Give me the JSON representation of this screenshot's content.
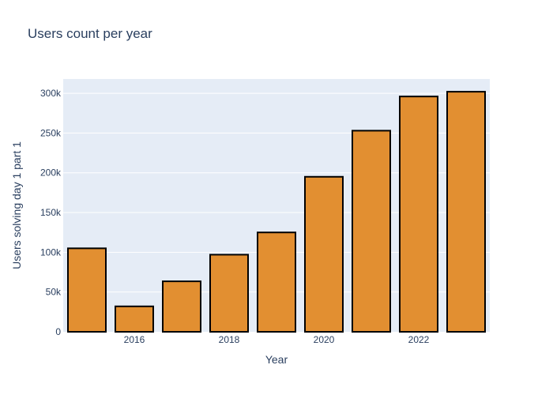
{
  "chart_data": {
    "type": "bar",
    "title": "Users count per year",
    "xlabel": "Year",
    "ylabel": "Users solving day 1 part 1",
    "categories": [
      2015,
      2016,
      2017,
      2018,
      2019,
      2020,
      2021,
      2022,
      2023
    ],
    "values": [
      105000,
      32000,
      63500,
      97000,
      125000,
      195000,
      253000,
      296000,
      302000
    ],
    "xticks": [
      2016,
      2018,
      2020,
      2022
    ],
    "ylim": [
      0,
      318000
    ],
    "yticks": [
      0,
      50000,
      100000,
      150000,
      200000,
      250000,
      300000
    ],
    "ytick_labels": [
      "0",
      "50k",
      "100k",
      "150k",
      "200k",
      "250k",
      "300k"
    ],
    "grid": true,
    "colors": {
      "bar_fill": "#e28f31",
      "bar_stroke": "#000000",
      "plot_bg": "#e5ecf6",
      "grid": "#ffffff",
      "text": "#2a3f5f"
    }
  }
}
